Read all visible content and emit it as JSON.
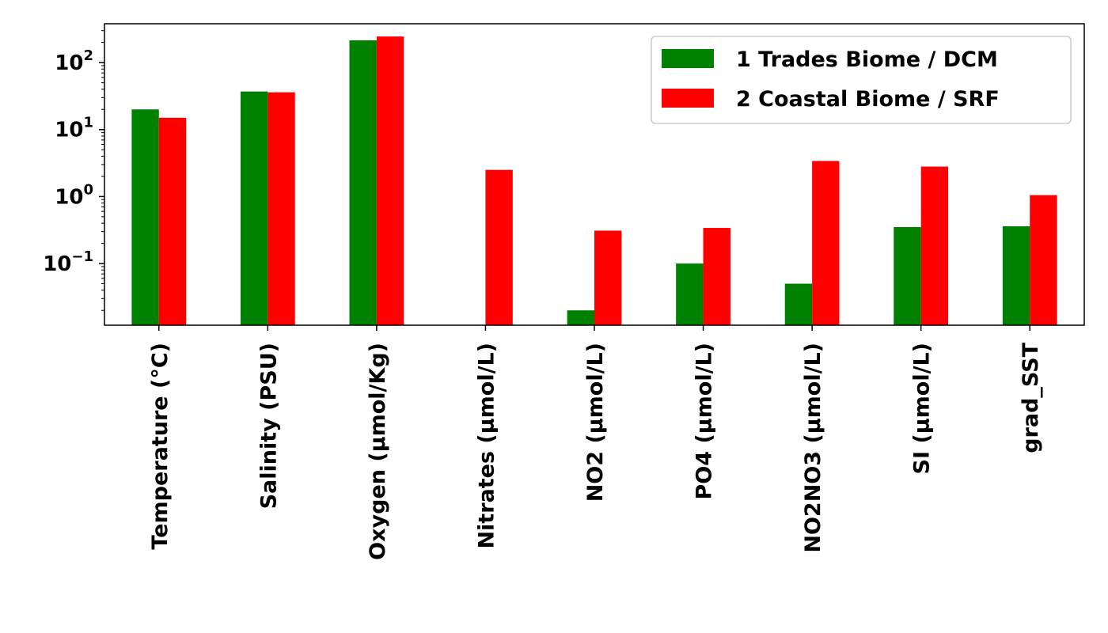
{
  "chart_data": {
    "type": "bar",
    "yscale": "log",
    "ylim": [
      0.012,
      380
    ],
    "grid": false,
    "legend_position": "top-right",
    "categories": [
      "Temperature ($^\\circ$C)",
      "Salinity (PSU)",
      "Oxygen ($\\mu$mol/Kg)",
      "Nitrates ($\\mu$mol/L)",
      "NO2 ($\\mu$mol/L)",
      "PO4 ($\\mu$mol/L)",
      "NO2NO3 ($\\mu$mol/L)",
      "SI ($\\mu$mol/L)",
      "grad_SST"
    ],
    "category_display": [
      "Temperature (°C)",
      "Salinity (PSU)",
      "Oxygen (μmol/Kg)",
      "Nitrates (μmol/L)",
      "NO2 (μmol/L)",
      "PO4 (μmol/L)",
      "NO2NO3 (μmol/L)",
      "SI (μmol/L)",
      "grad_SST"
    ],
    "series": [
      {
        "name": "1 Trades Biome / DCM",
        "color": "#008000",
        "values": [
          20,
          37,
          215,
          null,
          0.02,
          0.1,
          0.05,
          0.35,
          0.36
        ]
      },
      {
        "name": "2 Coastal Biome / SRF",
        "color": "#ff0000",
        "values": [
          15,
          36,
          245,
          2.5,
          0.31,
          0.34,
          3.4,
          2.8,
          1.05
        ]
      }
    ],
    "yticks": [
      {
        "value": 0.1,
        "base": "10",
        "exp": "−1"
      },
      {
        "value": 1,
        "base": "10",
        "exp": "0"
      },
      {
        "value": 10,
        "base": "10",
        "exp": "1"
      },
      {
        "value": 100,
        "base": "10",
        "exp": "2"
      }
    ]
  }
}
